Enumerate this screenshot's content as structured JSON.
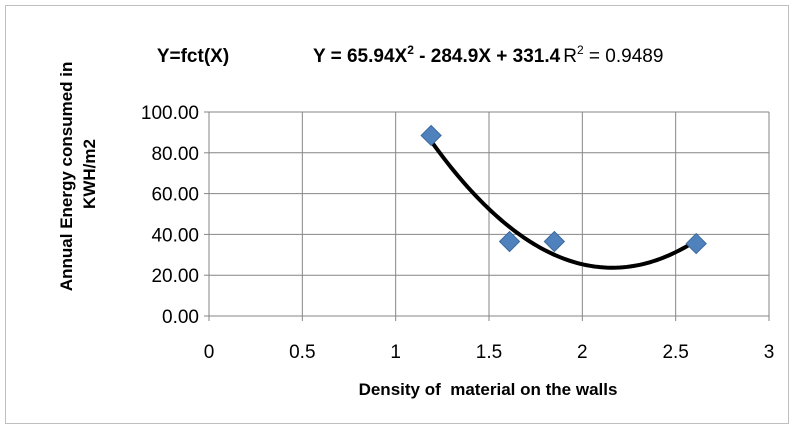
{
  "chart_data": {
    "type": "scatter",
    "title": "Y=fct(X)",
    "equation": {
      "y_part": "Y = 65.94X",
      "sup": "2",
      "rest": " - 284.9X + 331.4",
      "r2_label": "R",
      "r2_sup": "2",
      "r2_value": " = 0.9489"
    },
    "xlabel": "Density of  material on the walls",
    "ylabel_lines": [
      "Annual Energy consumed in",
      "KWH/m2"
    ],
    "xlim": [
      0,
      3
    ],
    "ylim": [
      0,
      100
    ],
    "x_ticks": [
      0,
      0.5,
      1,
      1.5,
      2,
      2.5,
      3
    ],
    "x_tick_labels": [
      "0",
      "0.5",
      "1",
      "1.5",
      "2",
      "2.5",
      "3"
    ],
    "y_ticks": [
      0,
      20,
      40,
      60,
      80,
      100
    ],
    "y_tick_labels": [
      "0.00",
      "20.00",
      "40.00",
      "60.00",
      "80.00",
      "100.00"
    ],
    "grid": true,
    "points": [
      {
        "x": 1.19,
        "y": 88.5
      },
      {
        "x": 1.61,
        "y": 36.5
      },
      {
        "x": 1.85,
        "y": 36.5
      },
      {
        "x": 2.61,
        "y": 35.5
      }
    ],
    "trendline": {
      "type": "poly2",
      "a": 65.94,
      "b": -284.9,
      "c": 331.4,
      "x_from": 1.19,
      "x_to": 2.61
    },
    "colors": {
      "marker": "#4F81BD",
      "marker_edge": "#3A6A9F",
      "trendline": "#000000",
      "grid": "#868686",
      "axis": "#868686",
      "frame": "#bfbfbf"
    }
  }
}
